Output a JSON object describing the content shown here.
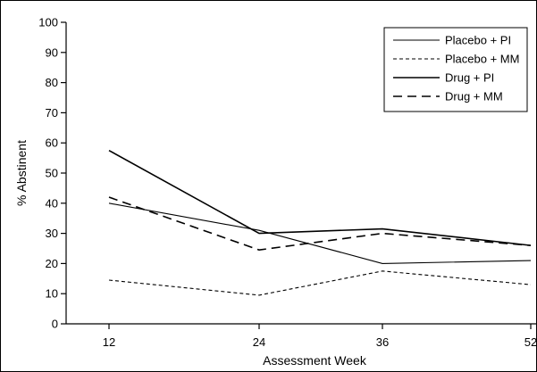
{
  "chart_data": {
    "type": "line",
    "xlabel": "Assessment Week",
    "ylabel": "% Abstinent",
    "x": [
      12,
      24,
      36,
      52
    ],
    "x_tick_labels": [
      "12",
      "24",
      "36",
      "52"
    ],
    "ylim": [
      0,
      100
    ],
    "y_ticks": [
      0,
      10,
      20,
      30,
      40,
      50,
      60,
      70,
      80,
      90,
      100
    ],
    "grid": false,
    "legend_position": "top-right",
    "series": [
      {
        "name": "Placebo + PI",
        "style": "solid-thin",
        "values": [
          40,
          31,
          20,
          21
        ]
      },
      {
        "name": "Placebo + MM",
        "style": "dotted",
        "values": [
          14.5,
          9.5,
          17.5,
          13
        ]
      },
      {
        "name": "Drug + PI",
        "style": "solid",
        "values": [
          57.5,
          30,
          31.5,
          26
        ]
      },
      {
        "name": "Drug + MM",
        "style": "long-dash",
        "values": [
          42,
          24.5,
          30,
          26
        ]
      }
    ]
  }
}
